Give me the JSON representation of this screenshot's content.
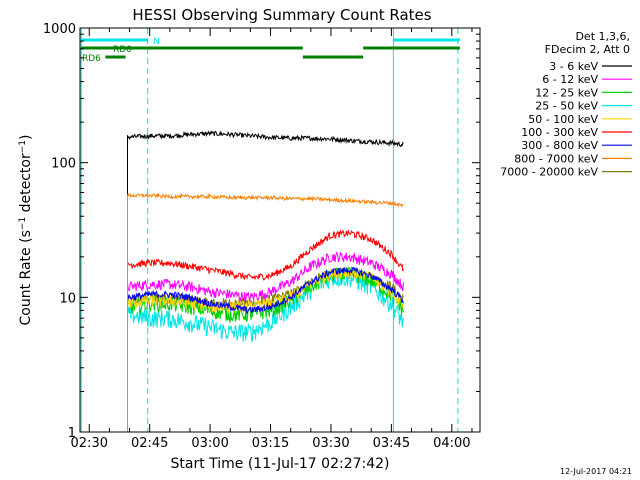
{
  "chart_data": {
    "type": "line",
    "title": "HESSI Observing Summary Count Rates",
    "xlabel": "Start Time (11-Jul-17 02:27:42)",
    "ylabel": "Count Rate (s⁻¹ detector⁻¹)",
    "x_ticks": [
      "02:30",
      "02:45",
      "03:00",
      "03:15",
      "03:30",
      "03:45",
      "04:00"
    ],
    "x_range": [
      "02:27:42",
      "04:07:00"
    ],
    "y_ticks": [
      "1",
      "10",
      "100",
      "1000"
    ],
    "ylim": [
      1,
      1000
    ],
    "yscale": "log",
    "legend_header": [
      "Det 1,3,6,",
      "FDecim 2, Att 0"
    ],
    "legend_position": "right",
    "timestamp": "12-Jul-2017 04:21",
    "flags": {
      "N": {
        "label": "N",
        "color": "#00e5e5",
        "intervals": [
          [
            "02:28",
            "02:44:30"
          ],
          [
            "03:45:30",
            "04:02"
          ]
        ]
      },
      "RD0": {
        "label": "RD0",
        "color": "#008000",
        "intervals": [
          [
            "02:28",
            "03:23"
          ],
          [
            "03:23",
            "03:38"
          ],
          [
            "03:38",
            "04:02"
          ]
        ]
      },
      "RD6": {
        "label": "RD6",
        "color": "#008000",
        "intervals": [
          [
            "02:34",
            "02:39"
          ]
        ]
      }
    },
    "vlines_solid": [
      "02:28",
      "03:45:30"
    ],
    "vlines_dashed": [
      "02:44:30",
      "04:01:30"
    ],
    "data_start": "02:39:30",
    "data_end": "03:48:00",
    "series": [
      {
        "name": "3 - 6 keV",
        "color": "#000000",
        "x": [
          "02:40",
          "02:45",
          "02:50",
          "02:55",
          "03:00",
          "03:05",
          "03:10",
          "03:15",
          "03:20",
          "03:25",
          "03:30",
          "03:35",
          "03:40",
          "03:45",
          "03:48"
        ],
        "values": [
          155,
          158,
          158,
          162,
          165,
          162,
          158,
          154,
          152,
          152,
          150,
          146,
          143,
          140,
          136
        ]
      },
      {
        "name": "6 - 12 keV",
        "color": "#ff00ff",
        "x": [
          "02:40",
          "02:45",
          "02:50",
          "02:55",
          "03:00",
          "03:05",
          "03:10",
          "03:15",
          "03:20",
          "03:25",
          "03:30",
          "03:35",
          "03:40",
          "03:45",
          "03:48"
        ],
        "values": [
          12,
          12.5,
          12.5,
          12,
          11,
          10.5,
          10,
          11,
          13,
          17,
          20,
          20,
          18,
          15,
          12
        ]
      },
      {
        "name": "12 - 25 keV",
        "color": "#00d000",
        "x": [
          "02:40",
          "02:45",
          "02:50",
          "02:55",
          "03:00",
          "03:05",
          "03:10",
          "03:15",
          "03:20",
          "03:25",
          "03:30",
          "03:35",
          "03:40",
          "03:45",
          "03:48"
        ],
        "values": [
          8.5,
          9,
          9,
          8.5,
          8,
          7.5,
          7.5,
          8,
          9.5,
          12,
          14.5,
          15,
          13.5,
          10.5,
          8
        ]
      },
      {
        "name": "25 - 50 keV",
        "color": "#00e5e5",
        "x": [
          "02:40",
          "02:45",
          "02:50",
          "02:55",
          "03:00",
          "03:05",
          "03:10",
          "03:15",
          "03:20",
          "03:25",
          "03:30",
          "03:35",
          "03:40",
          "03:45",
          "03:48"
        ],
        "values": [
          7.5,
          7,
          7,
          6.5,
          6,
          5.5,
          5.5,
          6.5,
          8.5,
          11.5,
          14,
          14,
          12,
          9,
          6.5
        ]
      },
      {
        "name": "50 - 100 keV",
        "color": "#ffd200",
        "x": [
          "02:40",
          "02:45",
          "02:50",
          "02:55",
          "03:00",
          "03:05",
          "03:10",
          "03:15",
          "03:20",
          "03:25",
          "03:30",
          "03:35",
          "03:40",
          "03:45",
          "03:48"
        ],
        "values": [
          9,
          9.5,
          9.5,
          9,
          8.5,
          8.5,
          8.5,
          9,
          10,
          12.5,
          15,
          15.5,
          14,
          11,
          9
        ]
      },
      {
        "name": "100 - 300 keV",
        "color": "#ff0000",
        "x": [
          "02:40",
          "02:45",
          "02:50",
          "02:55",
          "03:00",
          "03:05",
          "03:10",
          "03:15",
          "03:20",
          "03:25",
          "03:30",
          "03:35",
          "03:40",
          "03:45",
          "03:48"
        ],
        "values": [
          17.5,
          18,
          18,
          17,
          16,
          15,
          14,
          14.5,
          17,
          23,
          29,
          30,
          27,
          21,
          16
        ]
      },
      {
        "name": "300 - 800 keV",
        "color": "#0000ff",
        "x": [
          "02:40",
          "02:45",
          "02:50",
          "02:55",
          "03:00",
          "03:05",
          "03:10",
          "03:15",
          "03:20",
          "03:25",
          "03:30",
          "03:35",
          "03:40",
          "03:45",
          "03:48"
        ],
        "values": [
          10,
          10.5,
          10.5,
          10,
          9,
          8.5,
          8,
          8.5,
          10,
          13,
          15.5,
          16,
          14.5,
          11.5,
          9.5
        ]
      },
      {
        "name": "800 - 7000 keV",
        "color": "#ff8000",
        "x": [
          "02:40",
          "02:45",
          "02:50",
          "02:55",
          "03:00",
          "03:05",
          "03:10",
          "03:15",
          "03:20",
          "03:25",
          "03:30",
          "03:35",
          "03:40",
          "03:45",
          "03:48"
        ],
        "values": [
          57,
          57,
          56,
          56,
          56,
          55,
          55,
          55,
          54,
          54,
          53,
          52,
          51,
          50,
          48
        ]
      },
      {
        "name": "7000 - 20000 keV",
        "color": "#808000",
        "x": [
          "02:40",
          "02:45",
          "02:50",
          "02:55",
          "03:00",
          "03:05",
          "03:10",
          "03:15",
          "03:20",
          "03:25",
          "03:30",
          "03:35",
          "03:40",
          "03:45",
          "03:48"
        ],
        "values": [
          9.5,
          10,
          10,
          9.5,
          9,
          9,
          9,
          9.5,
          10.5,
          13,
          15,
          15,
          14,
          12,
          9.5
        ]
      }
    ]
  }
}
